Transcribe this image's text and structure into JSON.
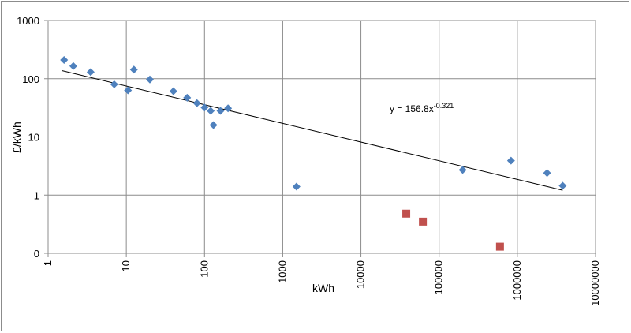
{
  "chart_data": {
    "type": "scatter",
    "xlabel": "kWh",
    "ylabel": "£/kWh",
    "x_scale": "log",
    "y_scale": "log",
    "xlim": [
      1,
      10000000
    ],
    "ylim": [
      0.1,
      1000
    ],
    "x_tick_labels": [
      "1",
      "10",
      "100",
      "1000",
      "10000",
      "100000",
      "1000000",
      "10000000"
    ],
    "y_tick_labels": [
      "0",
      "1",
      "10",
      "100",
      "1000"
    ],
    "y_tick_values": [
      0.1,
      1,
      10,
      100,
      1000
    ],
    "grid": true,
    "legend": "none",
    "series": [
      {
        "marker": "diamond",
        "color": "#4F81BD",
        "points": [
          [
            1.6,
            210
          ],
          [
            2.1,
            165
          ],
          [
            3.5,
            130
          ],
          [
            7,
            80
          ],
          [
            10.5,
            63
          ],
          [
            12.5,
            143
          ],
          [
            20,
            97
          ],
          [
            40,
            61
          ],
          [
            60,
            47
          ],
          [
            80,
            38
          ],
          [
            100,
            32
          ],
          [
            120,
            28
          ],
          [
            130,
            16
          ],
          [
            160,
            28
          ],
          [
            200,
            31
          ],
          [
            1500,
            1.4
          ],
          [
            200000,
            2.7
          ],
          [
            830000,
            3.9
          ],
          [
            2400000,
            2.4
          ],
          [
            3800000,
            1.45
          ]
        ]
      },
      {
        "marker": "square",
        "color": "#C0504D",
        "points": [
          [
            38000,
            0.48
          ],
          [
            62000,
            0.35
          ],
          [
            600000,
            0.13
          ]
        ]
      }
    ],
    "trendline": {
      "equation_prefix": "y = 156.8x",
      "equation_exponent": "-0.321",
      "a": 156.8,
      "b": -0.321,
      "x_range": [
        1.5,
        3800000
      ],
      "color": "#000000"
    }
  }
}
